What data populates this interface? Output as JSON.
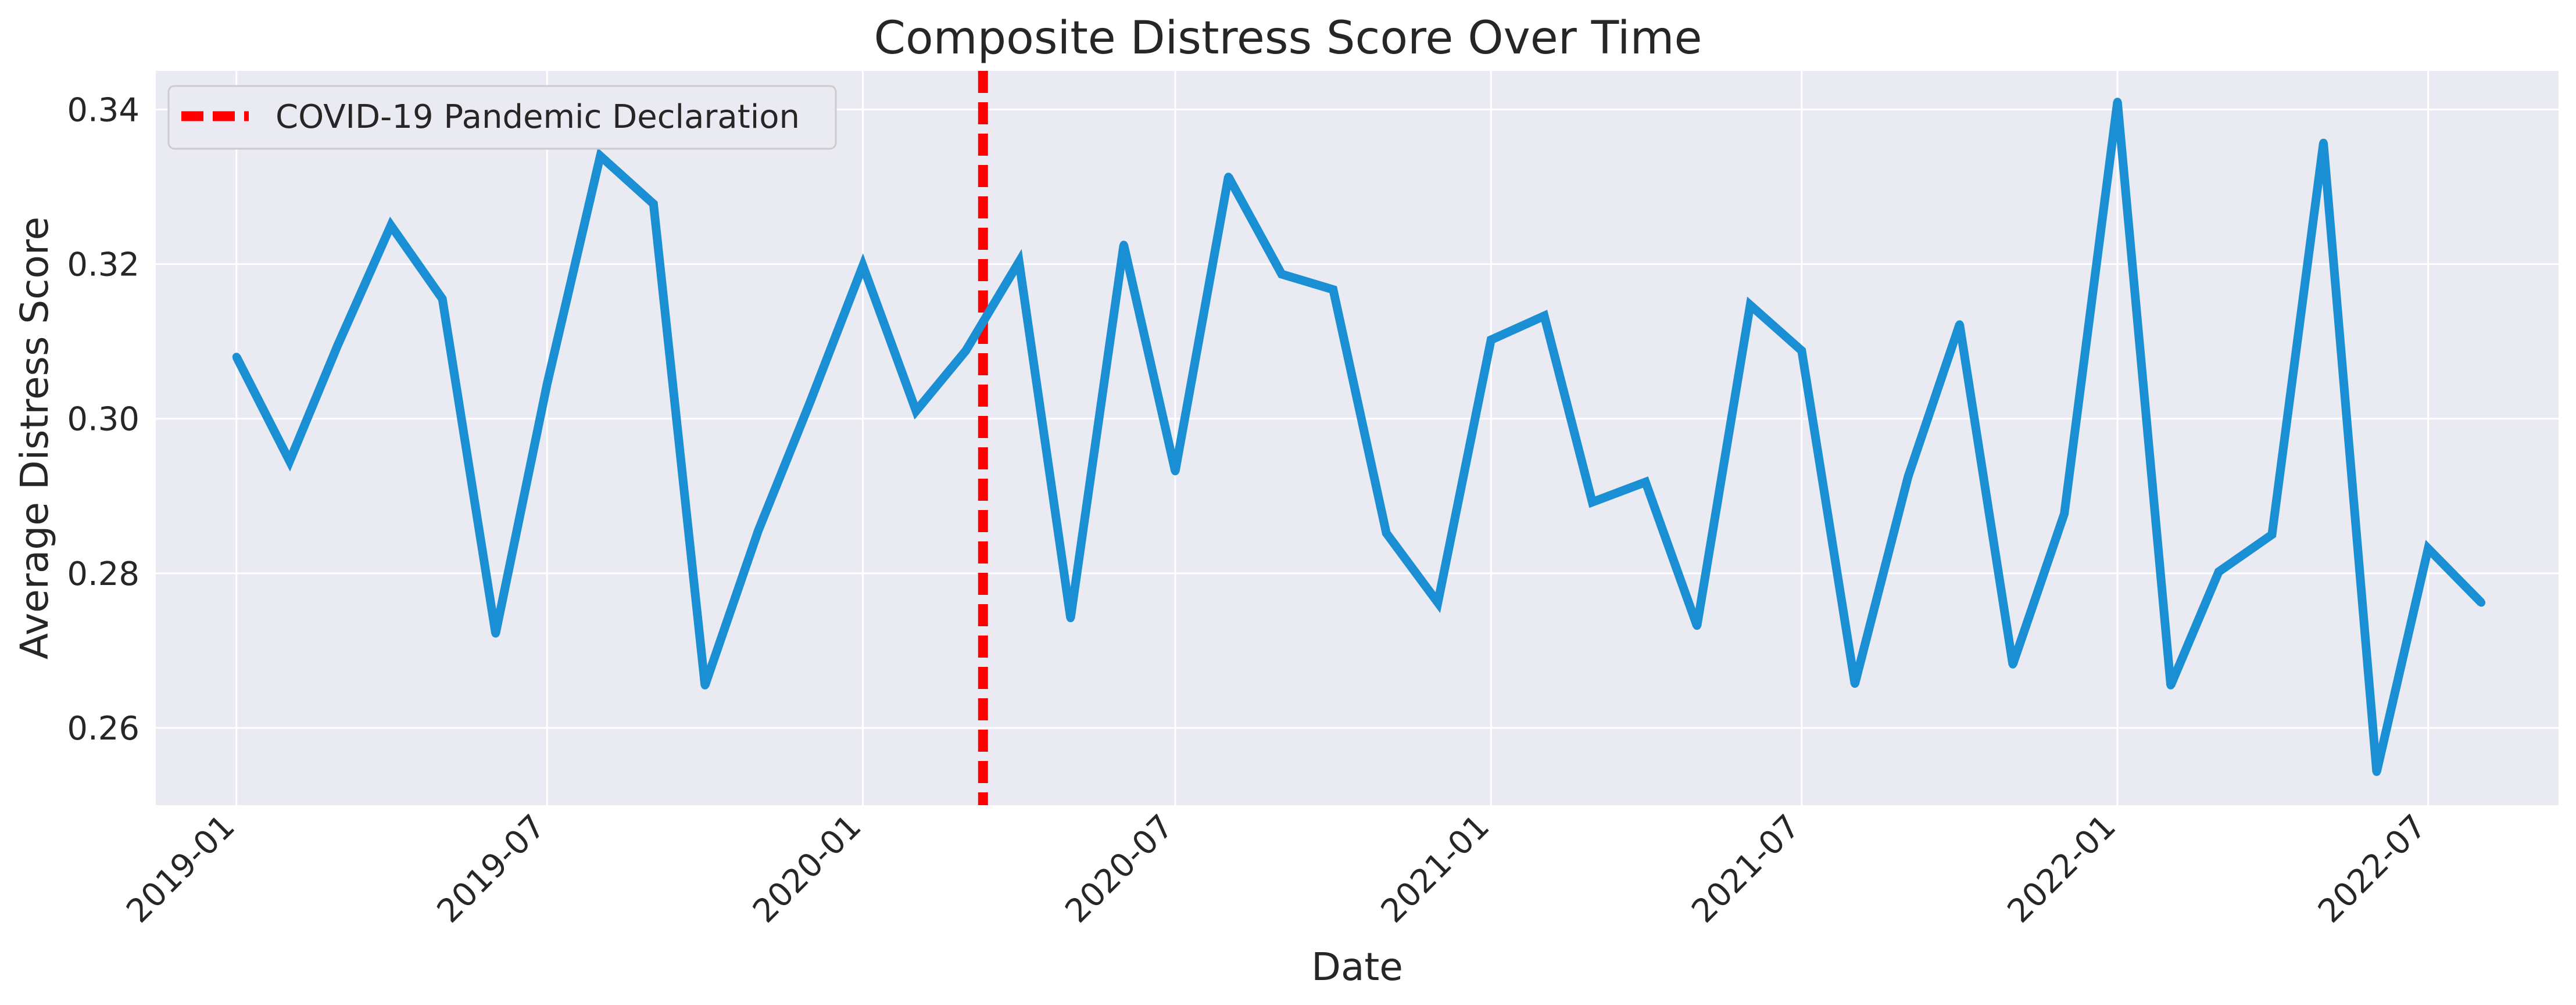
{
  "chart_data": {
    "type": "line",
    "title": "Composite Distress Score Over Time",
    "xlabel": "Date",
    "ylabel": "Average Distress Score",
    "x_ticks": [
      "2019-01",
      "2019-07",
      "2020-01",
      "2020-07",
      "2021-01",
      "2021-07",
      "2022-01",
      "2022-07"
    ],
    "y_ticks": [
      "0.26",
      "0.28",
      "0.30",
      "0.32",
      "0.34"
    ],
    "y_tick_values": [
      0.26,
      0.28,
      0.3,
      0.32,
      0.34
    ],
    "ylim": [
      0.25,
      0.345
    ],
    "xlim": [
      "2018-11-15",
      "2022-09-15"
    ],
    "grid": true,
    "background": "#eaeaf2",
    "series": [
      {
        "color": "#1a8fd4",
        "x": [
          "2019-01",
          "2019-02",
          "2019-03",
          "2019-04",
          "2019-05",
          "2019-06",
          "2019-07",
          "2019-08",
          "2019-09",
          "2019-10",
          "2019-11",
          "2019-12",
          "2020-01",
          "2020-02",
          "2020-03",
          "2020-04",
          "2020-05",
          "2020-06",
          "2020-07",
          "2020-08",
          "2020-09",
          "2020-10",
          "2020-11",
          "2020-12",
          "2021-01",
          "2021-02",
          "2021-03",
          "2021-04",
          "2021-05",
          "2021-06",
          "2021-07",
          "2021-08",
          "2021-09",
          "2021-10",
          "2021-11",
          "2021-12",
          "2022-01",
          "2022-02",
          "2022-03",
          "2022-04",
          "2022-05",
          "2022-06",
          "2022-07",
          "2022-08"
        ],
        "values": [
          0.308,
          0.2945,
          0.3095,
          0.325,
          0.3155,
          0.2722,
          0.3045,
          0.334,
          0.3278,
          0.2655,
          0.2855,
          0.302,
          0.3198,
          0.301,
          0.3088,
          0.3203,
          0.2742,
          0.3225,
          0.2932,
          0.3313,
          0.3187,
          0.3167,
          0.2852,
          0.2762,
          0.3102,
          0.3133,
          0.2892,
          0.2918,
          0.2732,
          0.3147,
          0.3088,
          0.2657,
          0.2925,
          0.3122,
          0.2682,
          0.2877,
          0.341,
          0.2655,
          0.2802,
          0.285,
          0.3357,
          0.2543,
          0.2832,
          0.2762
        ]
      }
    ],
    "reference_line": {
      "x": "2020-03-11",
      "label": "COVID-19 Pandemic Declaration",
      "color": "#ff0000",
      "style": "dashed"
    },
    "legend_position": "top-left"
  }
}
